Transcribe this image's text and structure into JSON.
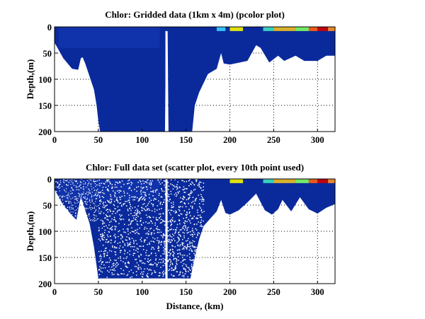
{
  "chart_data": [
    {
      "type": "heatmap",
      "title": "Chlor: Gridded data (1km x 4m) (pcolor plot)",
      "xlabel": "",
      "ylabel": "Depth,(m)",
      "xlim": [
        0,
        320
      ],
      "ylim": [
        200,
        0
      ],
      "xticks": [
        "0",
        "50",
        "100",
        "150",
        "200",
        "250",
        "300"
      ],
      "yticks": [
        "0",
        "50",
        "100",
        "150",
        "200"
      ],
      "grid": true,
      "bottom_depth_profile": [
        [
          0,
          30
        ],
        [
          5,
          45
        ],
        [
          10,
          60
        ],
        [
          20,
          80
        ],
        [
          27,
          82
        ],
        [
          30,
          60
        ],
        [
          32,
          58
        ],
        [
          35,
          70
        ],
        [
          40,
          95
        ],
        [
          45,
          120
        ],
        [
          48,
          150
        ],
        [
          50,
          180
        ],
        [
          52,
          200
        ],
        [
          126,
          200
        ],
        [
          127,
          10
        ],
        [
          129,
          10
        ],
        [
          130,
          200
        ],
        [
          157,
          200
        ],
        [
          160,
          150
        ],
        [
          165,
          125
        ],
        [
          175,
          90
        ],
        [
          185,
          80
        ],
        [
          190,
          50
        ],
        [
          193,
          70
        ],
        [
          200,
          72
        ],
        [
          220,
          65
        ],
        [
          230,
          35
        ],
        [
          235,
          40
        ],
        [
          245,
          68
        ],
        [
          255,
          55
        ],
        [
          262,
          65
        ],
        [
          275,
          55
        ],
        [
          285,
          65
        ],
        [
          300,
          65
        ],
        [
          310,
          55
        ],
        [
          320,
          55
        ]
      ],
      "surface_patches": [
        [
          185,
          195,
          "#3ad0ff"
        ],
        [
          200,
          215,
          "#f5f500"
        ],
        [
          238,
          250,
          "#40e0c0"
        ],
        [
          250,
          275,
          "#f0c020"
        ],
        [
          275,
          290,
          "#80ff60"
        ],
        [
          290,
          300,
          "#ff6010"
        ],
        [
          300,
          312,
          "#d00000"
        ],
        [
          312,
          320,
          "#ff9020"
        ]
      ]
    },
    {
      "type": "scatter",
      "title": "Chlor: Full data set (scatter plot, every 10th point used)",
      "xlabel": "Distance, (km)",
      "ylabel": "Depth,(m)",
      "xlim": [
        0,
        320
      ],
      "ylim": [
        200,
        0
      ],
      "xticks": [
        "0",
        "50",
        "100",
        "150",
        "200",
        "250",
        "300"
      ],
      "yticks": [
        "0",
        "50",
        "100",
        "150",
        "200"
      ],
      "grid": true,
      "bottom_depth_profile": [
        [
          0,
          20
        ],
        [
          10,
          50
        ],
        [
          20,
          70
        ],
        [
          25,
          78
        ],
        [
          30,
          32
        ],
        [
          35,
          60
        ],
        [
          40,
          85
        ],
        [
          45,
          130
        ],
        [
          50,
          190
        ],
        [
          155,
          190
        ],
        [
          160,
          150
        ],
        [
          165,
          115
        ],
        [
          170,
          90
        ],
        [
          185,
          62
        ],
        [
          190,
          40
        ],
        [
          195,
          65
        ],
        [
          200,
          68
        ],
        [
          210,
          60
        ],
        [
          220,
          45
        ],
        [
          230,
          28
        ],
        [
          240,
          60
        ],
        [
          248,
          68
        ],
        [
          255,
          58
        ],
        [
          260,
          40
        ],
        [
          270,
          62
        ],
        [
          280,
          35
        ],
        [
          290,
          58
        ],
        [
          300,
          66
        ],
        [
          310,
          55
        ],
        [
          320,
          48
        ]
      ],
      "surface_patches": [
        [
          200,
          215,
          "#f5f500"
        ],
        [
          238,
          250,
          "#40e0c0"
        ],
        [
          250,
          275,
          "#f0c020"
        ],
        [
          275,
          290,
          "#80ff60"
        ],
        [
          290,
          300,
          "#ff6010"
        ],
        [
          300,
          312,
          "#d00000"
        ],
        [
          312,
          320,
          "#ff9020"
        ]
      ]
    }
  ],
  "colors": {
    "water": "#0a2a9c",
    "mid": "#1c44c8"
  }
}
